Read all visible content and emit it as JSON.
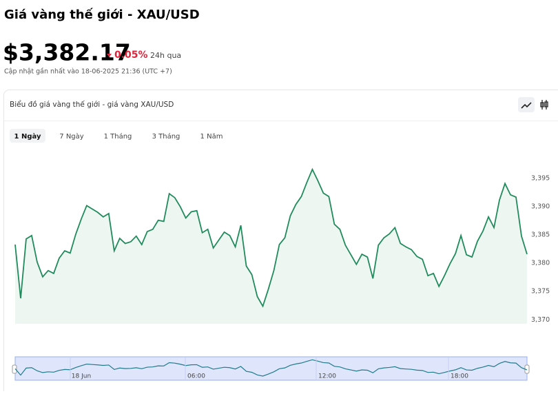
{
  "header": {
    "title": "Giá vàng thế giới - XAU/USD",
    "price": "$3,382.17",
    "change": "0.05%",
    "period": "24h qua",
    "updated": "Cập nhật gần nhất vào 18-06-2025 21:36 (UTC +7)"
  },
  "card": {
    "title": "Biểu đồ giá vàng thế giới - giá vàng XAU/USD",
    "tabs": [
      "1 Ngày",
      "7 Ngày",
      "1 Tháng",
      "3 Tháng",
      "1 Năm"
    ]
  },
  "navigator": {
    "labels": [
      "18 Jun",
      "06:00",
      "12:00",
      "18:00"
    ]
  },
  "chart_data": {
    "type": "line",
    "color": "#1f8b5c",
    "fill": "#edf6f0",
    "ylim": [
      3369.3,
      3400
    ],
    "yticks": [
      {
        "value": 3370,
        "label": "3,370"
      },
      {
        "value": 3375,
        "label": "3,375"
      },
      {
        "value": 3380,
        "label": "3,380"
      },
      {
        "value": 3385,
        "label": "3,385"
      },
      {
        "value": 3390,
        "label": "3,390"
      },
      {
        "value": 3395,
        "label": "3,395"
      }
    ],
    "values": [
      3383.3,
      3373.8,
      3384.3,
      3384.9,
      3380.2,
      3377.6,
      3378.7,
      3378.2,
      3380.9,
      3382.2,
      3381.8,
      3385.1,
      3387.8,
      3390.2,
      3389.6,
      3389.0,
      3388.2,
      3388.8,
      3382.2,
      3384.4,
      3383.5,
      3383.8,
      3384.8,
      3383.3,
      3385.6,
      3386.0,
      3387.6,
      3387.4,
      3392.3,
      3391.6,
      3390.0,
      3388.0,
      3389.1,
      3389.3,
      3385.4,
      3386.0,
      3382.7,
      3384.1,
      3385.5,
      3384.9,
      3382.9,
      3386.7,
      3379.5,
      3378.0,
      3374.1,
      3372.4,
      3375.4,
      3378.7,
      3383.3,
      3384.5,
      3388.4,
      3390.4,
      3391.8,
      3394.3,
      3396.6,
      3394.6,
      3392.4,
      3391.8,
      3386.9,
      3386.0,
      3383.2,
      3381.5,
      3379.8,
      3381.6,
      3381.1,
      3377.3,
      3383.2,
      3384.5,
      3385.2,
      3386.3,
      3383.5,
      3382.9,
      3382.4,
      3381.2,
      3380.7,
      3377.8,
      3378.2,
      3375.9,
      3377.8,
      3379.9,
      3381.7,
      3384.9,
      3381.5,
      3381.1,
      3383.9,
      3385.7,
      3388.2,
      3386.3,
      3391.2,
      3394.1,
      3392.1,
      3391.7,
      3384.8,
      3381.6
    ]
  }
}
